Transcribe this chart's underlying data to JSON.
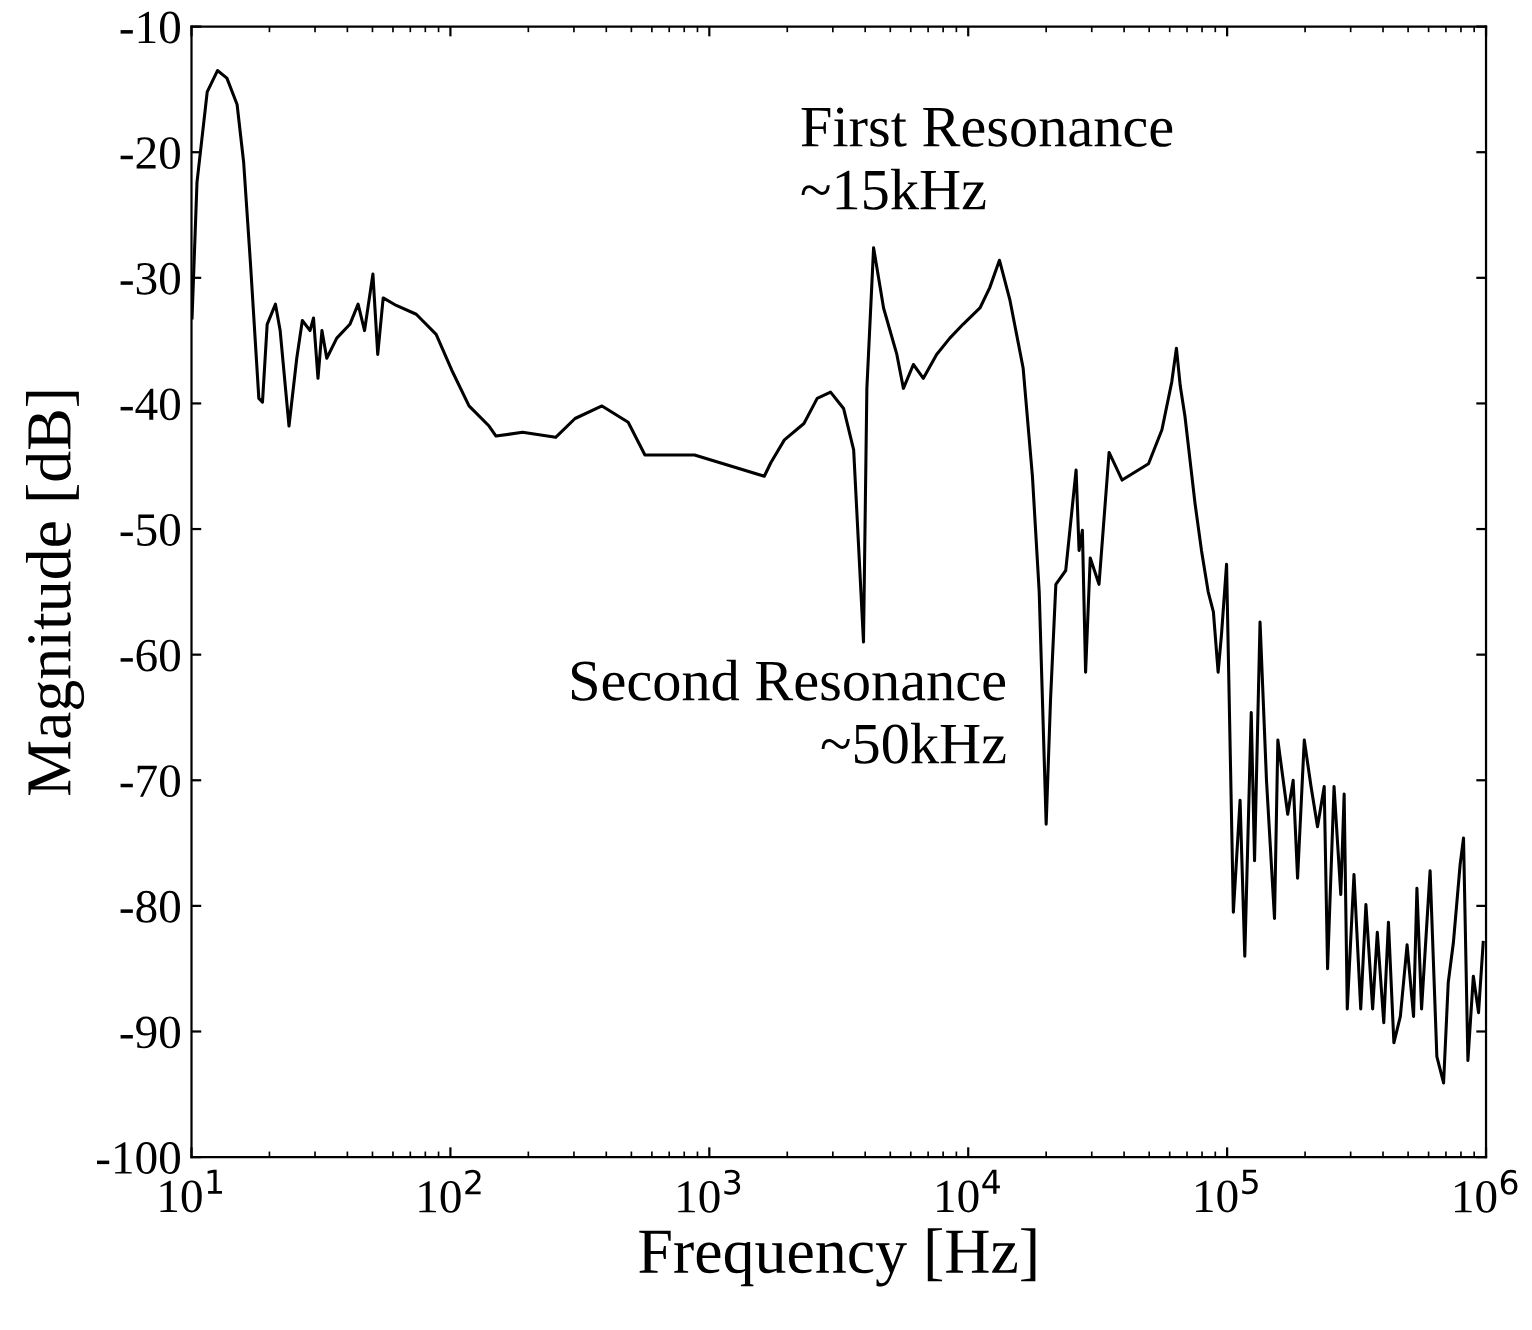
{
  "chart_data": {
    "type": "line",
    "xlabel": "Frequency [Hz]",
    "ylabel": "Magnitude [dB]",
    "log": "x",
    "grid": false,
    "legend": false,
    "marker": "none",
    "line_style": "solid",
    "xlim": [
      10,
      1000000
    ],
    "ylim": [
      -100,
      -10
    ],
    "xticks": [
      {
        "value": 10,
        "label": "10$^{1}$"
      },
      {
        "value": 100,
        "label": "10$^{2}$"
      },
      {
        "value": 1000,
        "label": "10$^{3}$"
      },
      {
        "value": 10000,
        "label": "10$^{4}$"
      },
      {
        "value": 100000,
        "label": "10$^{5}$"
      },
      {
        "value": 1000000,
        "label": "10$^{6}$"
      }
    ],
    "yticks": [
      -100,
      -90,
      -80,
      -70,
      -60,
      -50,
      -40,
      -30,
      -20,
      -10
    ],
    "annotations": [
      "First Resonance\n~15kHz",
      "Second Resonance\n~50kHz"
    ],
    "series": [
      {
        "color": "#000000",
        "x": [
          10.05,
          10.5,
          11.5,
          12.6,
          13.7,
          15.0,
          15.9,
          16.9,
          18.2,
          18.8,
          19.6,
          21.1,
          22.0,
          23.8,
          25.5,
          26.8,
          28.7,
          29.6,
          30.8,
          31.9,
          33.3,
          36.4,
          40.9,
          44.0,
          46.6,
          50.2,
          52.4,
          55.0,
          61.8,
          73.8,
          88.1,
          102,
          118,
          141,
          150,
          190,
          255,
          303,
          385,
          486,
          564,
          877,
          1630,
          1730,
          1950,
          2320,
          2610,
          2940,
          3300,
          3610,
          3940,
          4060,
          4310,
          4710,
          5300,
          5620,
          6140,
          6710,
          7550,
          8490,
          9550,
          11100,
          12100,
          13200,
          14500,
          16300,
          17700,
          18800,
          20000,
          20800,
          21800,
          23800,
          26100,
          26800,
          27600,
          28400,
          29600,
          32000,
          35000,
          39300,
          49700,
          56000,
          61100,
          63700,
          65900,
          68700,
          75200,
          79600,
          84500,
          88500,
          92300,
          95100,
          99500,
          105700,
          112200,
          117000,
          123900,
          127600,
          134000,
          141900,
          152400,
          157000,
          171400,
          179900,
          187100,
          198600,
          210900,
          223400,
          237100,
          244300,
          258800,
          274800,
          283100,
          291100,
          309000,
          328100,
          343600,
          364800,
          380200,
          402700,
          419800,
          440600,
          466700,
          495500,
          524800,
          540800,
          563600,
          608100,
          645700,
          685500,
          714500,
          748200,
          794300,
          818500,
          851100,
          893300,
          935400,
          975000
        ],
        "values": [
          -33.2,
          -22.4,
          -15.2,
          -13.5,
          -14.1,
          -16.2,
          -20.8,
          -28.9,
          -39.6,
          -39.9,
          -33.7,
          -32.1,
          -34.2,
          -41.8,
          -36.4,
          -33.4,
          -34.2,
          -33.2,
          -38.0,
          -34.2,
          -36.4,
          -34.8,
          -33.7,
          -32.1,
          -34.2,
          -29.7,
          -36.1,
          -31.6,
          -32.2,
          -32.9,
          -34.5,
          -37.5,
          -40.2,
          -41.8,
          -42.6,
          -42.3,
          -42.7,
          -41.2,
          -40.2,
          -41.5,
          -44.1,
          -44.1,
          -45.8,
          -44.7,
          -42.9,
          -41.6,
          -39.6,
          -39.1,
          -40.4,
          -43.7,
          -59.0,
          -38.8,
          -27.6,
          -32.4,
          -36.1,
          -38.8,
          -36.9,
          -38.0,
          -36.1,
          -34.8,
          -33.7,
          -32.4,
          -30.8,
          -28.6,
          -31.8,
          -37.2,
          -45.8,
          -55.0,
          -73.5,
          -63.5,
          -54.4,
          -53.3,
          -45.3,
          -51.7,
          -50.1,
          -61.4,
          -52.3,
          -54.4,
          -43.9,
          -46.1,
          -44.8,
          -42.1,
          -38.3,
          -35.6,
          -38.6,
          -41.0,
          -48.0,
          -51.7,
          -55.0,
          -56.6,
          -61.4,
          -58.4,
          -52.8,
          -80.5,
          -71.6,
          -84.0,
          -64.6,
          -76.4,
          -57.4,
          -70.0,
          -81.0,
          -66.8,
          -72.7,
          -70.0,
          -77.8,
          -66.8,
          -70.5,
          -73.7,
          -70.5,
          -85.0,
          -70.5,
          -79.1,
          -71.1,
          -88.2,
          -77.5,
          -88.2,
          -79.9,
          -88.2,
          -82.1,
          -89.3,
          -81.3,
          -90.9,
          -88.8,
          -83.1,
          -88.8,
          -78.6,
          -88.2,
          -77.2,
          -92.0,
          -94.1,
          -86.1,
          -82.9,
          -76.7,
          -74.6,
          -92.3,
          -85.6,
          -88.5,
          -82.9
        ]
      }
    ]
  }
}
